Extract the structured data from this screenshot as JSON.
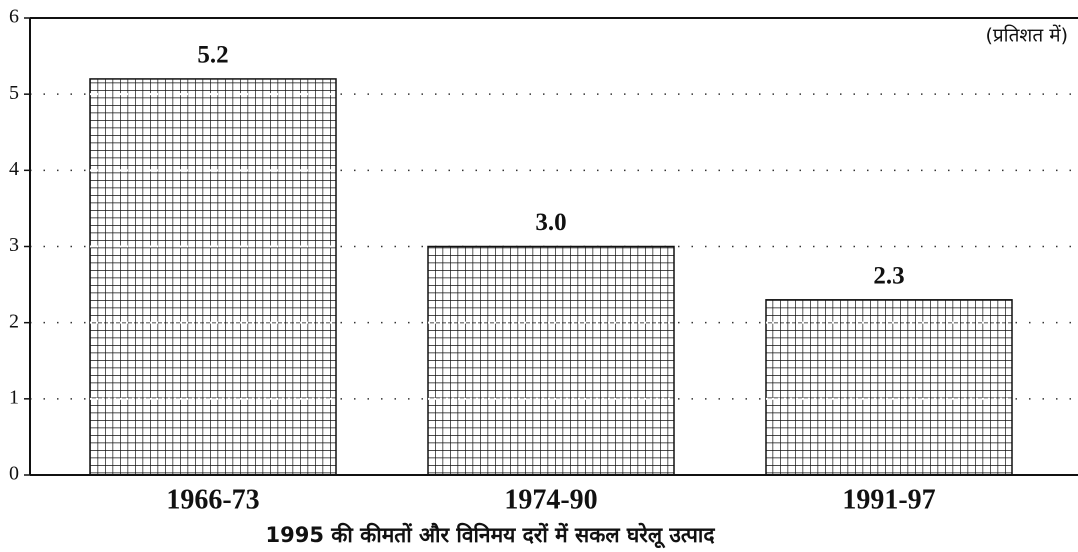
{
  "chart_data": {
    "type": "bar",
    "annotation": "(प्रतिशत में)",
    "x_label": "1995 की कीमतों और विनिमय दरों में सकल घरेलू उत्पाद",
    "categories": [
      "1966-73",
      "1974-90",
      "1991-97"
    ],
    "values": [
      5.2,
      3.0,
      2.3
    ],
    "value_labels": [
      "5.2",
      "3.0",
      "2.3"
    ],
    "color": "#111111",
    "ylim": [
      0,
      6
    ],
    "yticks": [
      0,
      1,
      2,
      3,
      4,
      5,
      6
    ],
    "grid": true
  }
}
